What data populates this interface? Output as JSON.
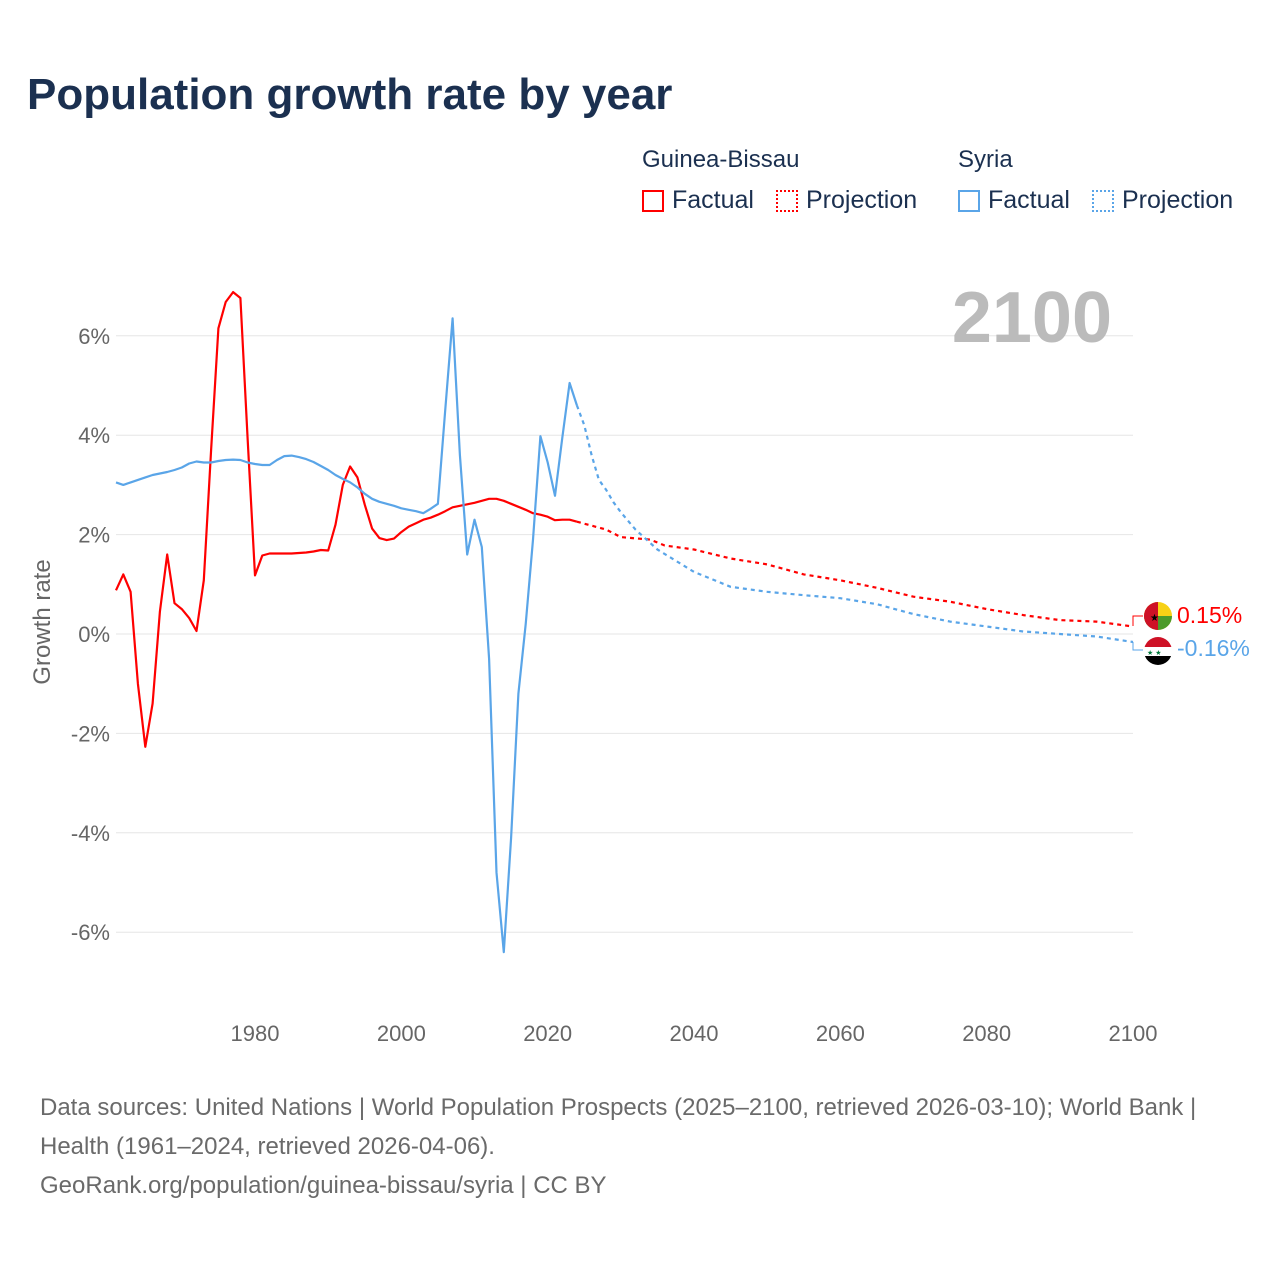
{
  "title": "Population growth rate by year",
  "legend": {
    "groups": [
      {
        "name": "Guinea-Bissau",
        "factual": "Factual",
        "projection": "Projection",
        "color": "#ff0000"
      },
      {
        "name": "Syria",
        "factual": "Factual",
        "projection": "Projection",
        "color": "#5aa5e8"
      }
    ]
  },
  "year_label": "2100",
  "end_labels": {
    "guinea_bissau": "0.15%",
    "syria": "-0.16%"
  },
  "footer": {
    "line1": "Data sources: United Nations | World Population Prospects (2025–2100, retrieved 2026-03-10); World Bank | Health (1961–2024, retrieved 2026-04-06).",
    "line2": "GeoRank.org/population/guinea-bissau/syria | CC BY"
  },
  "chart_data": {
    "type": "line",
    "title": "Population growth rate by year",
    "xlabel": "",
    "ylabel": "Growth rate",
    "xlim": [
      1961,
      2100
    ],
    "ylim": [
      -7.5,
      7.5
    ],
    "xticks": [
      1980,
      2000,
      2020,
      2040,
      2060,
      2080,
      2100
    ],
    "xtick_labels": [
      "1980",
      "2000",
      "2020",
      "2040",
      "2060",
      "2080",
      "2100"
    ],
    "yticks": [
      6,
      4,
      2,
      0,
      -2,
      -4,
      -6
    ],
    "ytick_labels": [
      "6%",
      "4%",
      "2%",
      "0%",
      "-2%",
      "-4%",
      "-6%"
    ],
    "grid": true,
    "series": [
      {
        "name": "Guinea-Bissau Factual",
        "color": "#ff0000",
        "dash": false,
        "x": [
          1961,
          1962,
          1963,
          1964,
          1965,
          1966,
          1967,
          1968,
          1969,
          1970,
          1971,
          1972,
          1973,
          1974,
          1975,
          1976,
          1977,
          1978,
          1979,
          1980,
          1981,
          1982,
          1983,
          1984,
          1985,
          1986,
          1987,
          1988,
          1989,
          1990,
          1991,
          1992,
          1993,
          1994,
          1995,
          1996,
          1997,
          1998,
          1999,
          2000,
          2001,
          2002,
          2003,
          2004,
          2005,
          2006,
          2007,
          2008,
          2009,
          2010,
          2011,
          2012,
          2013,
          2014,
          2015,
          2016,
          2017,
          2018,
          2019,
          2020,
          2021,
          2022,
          2023,
          2024
        ],
        "y": [
          0.88,
          1.2,
          0.85,
          -1.0,
          -2.27,
          -1.4,
          0.45,
          1.6,
          0.62,
          0.5,
          0.32,
          0.06,
          1.08,
          3.7,
          6.15,
          6.68,
          6.88,
          6.76,
          3.9,
          1.18,
          1.58,
          1.62,
          1.62,
          1.62,
          1.62,
          1.63,
          1.64,
          1.66,
          1.69,
          1.68,
          2.2,
          3.0,
          3.37,
          3.15,
          2.6,
          2.12,
          1.93,
          1.89,
          1.92,
          2.05,
          2.16,
          2.23,
          2.3,
          2.34,
          2.4,
          2.47,
          2.55,
          2.58,
          2.61,
          2.64,
          2.68,
          2.72,
          2.72,
          2.68,
          2.62,
          2.56,
          2.5,
          2.43,
          2.4,
          2.36,
          2.29,
          2.3,
          2.3,
          2.26
        ]
      },
      {
        "name": "Guinea-Bissau Projection",
        "color": "#ff0000",
        "dash": true,
        "x": [
          2024,
          2028,
          2030,
          2034,
          2036,
          2040,
          2045,
          2050,
          2055,
          2060,
          2065,
          2070,
          2075,
          2080,
          2085,
          2090,
          2095,
          2100
        ],
        "y": [
          2.26,
          2.1,
          1.95,
          1.9,
          1.78,
          1.7,
          1.52,
          1.4,
          1.2,
          1.08,
          0.93,
          0.75,
          0.65,
          0.5,
          0.38,
          0.28,
          0.25,
          0.15
        ]
      },
      {
        "name": "Syria Factual",
        "color": "#5aa5e8",
        "dash": false,
        "x": [
          1961,
          1962,
          1963,
          1964,
          1965,
          1966,
          1967,
          1968,
          1969,
          1970,
          1971,
          1972,
          1973,
          1974,
          1975,
          1976,
          1977,
          1978,
          1979,
          1980,
          1981,
          1982,
          1983,
          1984,
          1985,
          1986,
          1987,
          1988,
          1989,
          1990,
          1991,
          1992,
          1993,
          1994,
          1995,
          1996,
          1997,
          1998,
          1999,
          2000,
          2001,
          2002,
          2003,
          2004,
          2005,
          2006,
          2007,
          2008,
          2009,
          2010,
          2011,
          2012,
          2013,
          2014,
          2015,
          2016,
          2017,
          2018,
          2019,
          2020,
          2021,
          2022,
          2023,
          2024
        ],
        "y": [
          3.05,
          3.0,
          3.05,
          3.1,
          3.15,
          3.2,
          3.23,
          3.26,
          3.3,
          3.35,
          3.43,
          3.47,
          3.45,
          3.45,
          3.48,
          3.5,
          3.51,
          3.5,
          3.45,
          3.42,
          3.4,
          3.4,
          3.5,
          3.58,
          3.59,
          3.56,
          3.52,
          3.46,
          3.38,
          3.3,
          3.2,
          3.12,
          3.05,
          2.95,
          2.82,
          2.72,
          2.66,
          2.62,
          2.58,
          2.53,
          2.5,
          2.47,
          2.43,
          2.52,
          2.62,
          4.5,
          6.35,
          3.6,
          1.6,
          2.3,
          1.75,
          -0.5,
          -4.8,
          -6.4,
          -4.1,
          -1.2,
          0.2,
          1.9,
          3.98,
          3.45,
          2.78,
          3.95,
          5.05,
          4.6
        ]
      },
      {
        "name": "Syria Projection",
        "color": "#5aa5e8",
        "dash": true,
        "x": [
          2024,
          2025,
          2026,
          2027,
          2028,
          2029,
          2030,
          2032,
          2035,
          2040,
          2045,
          2050,
          2055,
          2060,
          2065,
          2070,
          2075,
          2080,
          2085,
          2090,
          2095,
          2100
        ],
        "y": [
          4.6,
          4.2,
          3.6,
          3.1,
          2.9,
          2.65,
          2.45,
          2.1,
          1.7,
          1.25,
          0.95,
          0.85,
          0.78,
          0.72,
          0.6,
          0.4,
          0.25,
          0.15,
          0.05,
          0.0,
          -0.05,
          -0.16
        ]
      }
    ]
  }
}
